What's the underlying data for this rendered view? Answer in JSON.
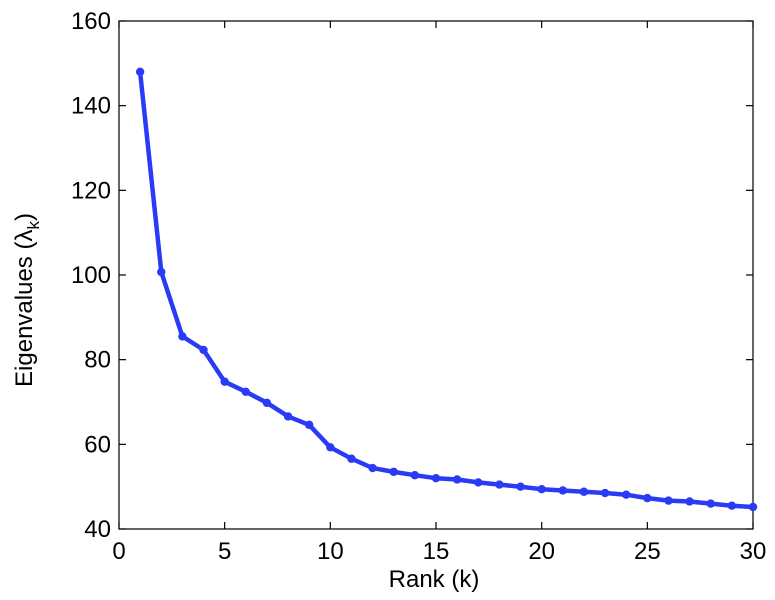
{
  "chart_data": {
    "type": "line",
    "xlabel": "Rank (k)",
    "ylabel": {
      "main": "Eigenvalues (",
      "symbol": "λ",
      "subscript": "k",
      "close": ")"
    },
    "xlim": [
      0,
      30
    ],
    "ylim": [
      40,
      160
    ],
    "x_ticks": [
      0,
      5,
      10,
      15,
      20,
      25,
      30
    ],
    "y_ticks": [
      40,
      60,
      80,
      100,
      120,
      140,
      160
    ],
    "grid": false,
    "line_color": "#2a3bf5",
    "series": [
      {
        "x": [
          1,
          2,
          3,
          4,
          5,
          6,
          7,
          8,
          9,
          10,
          11,
          12,
          13,
          14,
          15,
          16,
          17,
          18,
          19,
          20,
          21,
          22,
          23,
          24,
          25,
          26,
          27,
          28,
          29,
          30
        ],
        "values": [
          148,
          100.7,
          85.5,
          82.3,
          74.8,
          72.4,
          69.8,
          66.6,
          64.6,
          59.3,
          56.6,
          54.4,
          53.5,
          52.7,
          52.0,
          51.7,
          51.0,
          50.5,
          50.0,
          49.4,
          49.1,
          48.8,
          48.5,
          48.1,
          47.3,
          46.7,
          46.5,
          46.0,
          45.5,
          45.2
        ]
      }
    ]
  }
}
